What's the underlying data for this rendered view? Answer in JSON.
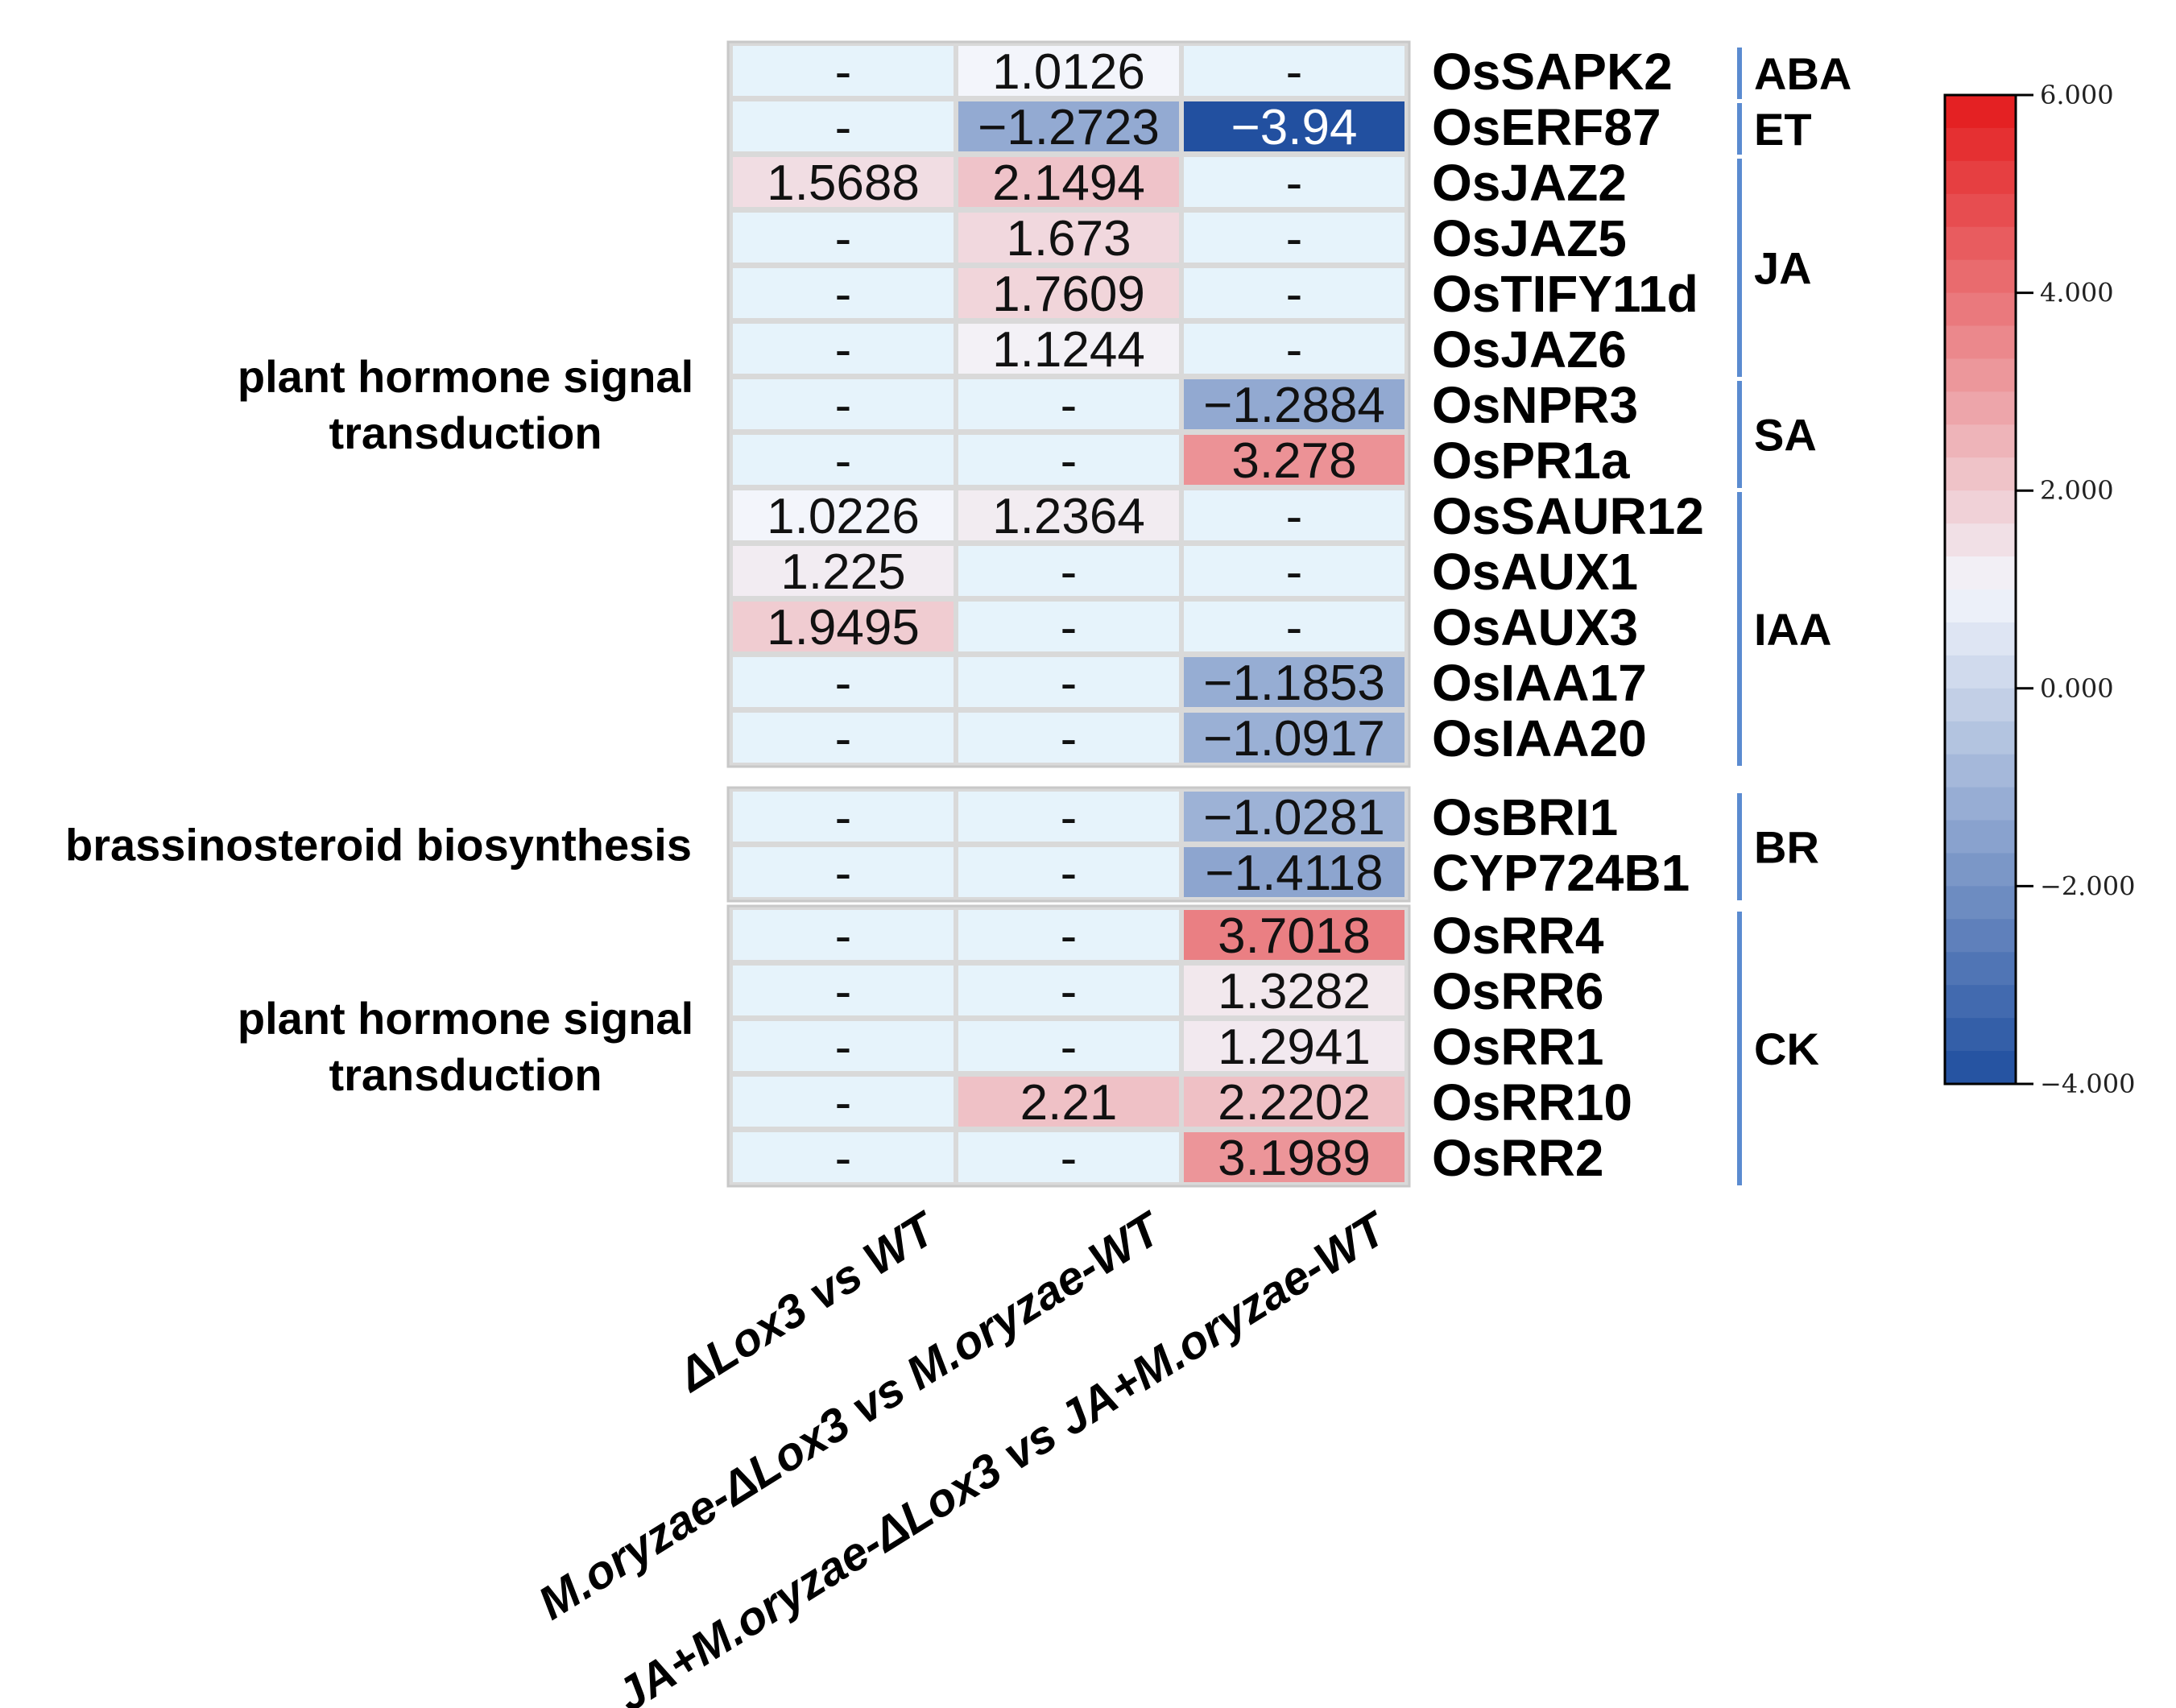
{
  "chart_data": {
    "type": "heatmap",
    "columns": [
      "ΔLox3 vs WT",
      "M.oryzae-ΔLox3 vs M.oryzae-WT",
      "JA+M.oryzae-ΔLox3 vs JA+M.oryzae-WT"
    ],
    "missing_label": "-",
    "blocks": [
      {
        "pathway_lines": [
          "plant hormone signal",
          "transduction"
        ],
        "rows": [
          {
            "gene": "OsSAPK2",
            "values": [
              null,
              1.0126,
              null
            ],
            "labels": [
              "-",
              "1.0126",
              "-"
            ]
          },
          {
            "gene": "OsERF87",
            "values": [
              null,
              -1.2723,
              -3.94
            ],
            "labels": [
              "-",
              "−1.2723",
              "−3.94"
            ]
          },
          {
            "gene": "OsJAZ2",
            "values": [
              1.5688,
              2.1494,
              null
            ],
            "labels": [
              "1.5688",
              "2.1494",
              "-"
            ]
          },
          {
            "gene": "OsJAZ5",
            "values": [
              null,
              1.673,
              null
            ],
            "labels": [
              "-",
              "1.673",
              "-"
            ]
          },
          {
            "gene": "OsTIFY11d",
            "values": [
              null,
              1.7609,
              null
            ],
            "labels": [
              "-",
              "1.7609",
              "-"
            ]
          },
          {
            "gene": "OsJAZ6",
            "values": [
              null,
              1.1244,
              null
            ],
            "labels": [
              "-",
              "1.1244",
              "-"
            ]
          },
          {
            "gene": "OsNPR3",
            "values": [
              null,
              null,
              -1.2884
            ],
            "labels": [
              "-",
              "-",
              "−1.2884"
            ]
          },
          {
            "gene": "OsPR1a",
            "values": [
              null,
              null,
              3.278
            ],
            "labels": [
              "-",
              "-",
              "3.278"
            ]
          },
          {
            "gene": "OsSAUR12",
            "values": [
              1.0226,
              1.2364,
              null
            ],
            "labels": [
              "1.0226",
              "1.2364",
              "-"
            ]
          },
          {
            "gene": "OsAUX1",
            "values": [
              1.225,
              null,
              null
            ],
            "labels": [
              "1.225",
              "-",
              "-"
            ]
          },
          {
            "gene": "OsAUX3",
            "values": [
              1.9495,
              null,
              null
            ],
            "labels": [
              "1.9495",
              "-",
              "-"
            ]
          },
          {
            "gene": "OsIAA17",
            "values": [
              null,
              null,
              -1.1853
            ],
            "labels": [
              "-",
              "-",
              "−1.1853"
            ]
          },
          {
            "gene": "OsIAA20",
            "values": [
              null,
              null,
              -1.0917
            ],
            "labels": [
              "-",
              "-",
              "−1.0917"
            ]
          }
        ]
      },
      {
        "pathway_lines": [
          "brassinosteroid biosynthesis"
        ],
        "rows": [
          {
            "gene": "OsBRI1",
            "values": [
              null,
              null,
              -1.0281
            ],
            "labels": [
              "-",
              "-",
              "−1.0281"
            ]
          },
          {
            "gene": "CYP724B1",
            "values": [
              null,
              null,
              -1.4118
            ],
            "labels": [
              "-",
              "-",
              "−1.4118"
            ]
          }
        ]
      },
      {
        "pathway_lines": [
          "plant hormone signal",
          "transduction"
        ],
        "rows": [
          {
            "gene": "OsRR4",
            "values": [
              null,
              null,
              3.7018
            ],
            "labels": [
              "-",
              "-",
              "3.7018"
            ]
          },
          {
            "gene": "OsRR6",
            "values": [
              null,
              null,
              1.3282
            ],
            "labels": [
              "-",
              "-",
              "1.3282"
            ]
          },
          {
            "gene": "OsRR1",
            "values": [
              null,
              null,
              1.2941
            ],
            "labels": [
              "-",
              "-",
              "1.2941"
            ]
          },
          {
            "gene": "OsRR10",
            "values": [
              null,
              2.21,
              2.2202
            ],
            "labels": [
              "-",
              "2.21",
              "2.2202"
            ]
          },
          {
            "gene": "OsRR2",
            "values": [
              null,
              null,
              3.1989
            ],
            "labels": [
              "-",
              "-",
              "3.1989"
            ]
          }
        ]
      }
    ],
    "categories": [
      {
        "name": "ABA",
        "from_gene": "OsSAPK2",
        "to_gene": "OsSAPK2"
      },
      {
        "name": "ET",
        "from_gene": "OsERF87",
        "to_gene": "OsERF87"
      },
      {
        "name": "JA",
        "from_gene": "OsJAZ2",
        "to_gene": "OsJAZ6"
      },
      {
        "name": "SA",
        "from_gene": "OsNPR3",
        "to_gene": "OsPR1a"
      },
      {
        "name": "IAA",
        "from_gene": "OsSAUR12",
        "to_gene": "OsIAA20"
      },
      {
        "name": "BR",
        "from_gene": "OsBRI1",
        "to_gene": "CYP724B1"
      },
      {
        "name": "CK",
        "from_gene": "OsRR4",
        "to_gene": "OsRR2"
      }
    ],
    "colorbar": {
      "min": -4,
      "max": 6,
      "ticks": [
        {
          "value": 6,
          "label": "6.000"
        },
        {
          "value": 4,
          "label": "4.000"
        },
        {
          "value": 2,
          "label": "2.000"
        },
        {
          "value": 0,
          "label": "0.000"
        },
        {
          "value": -2,
          "label": "−2.000"
        },
        {
          "value": -4,
          "label": "−4.000"
        }
      ],
      "colors": {
        "low": "#1f4e9f",
        "mid": "#f3f6fc",
        "high": "#e31a1c"
      },
      "missing_color": "#e6f3fb"
    }
  }
}
